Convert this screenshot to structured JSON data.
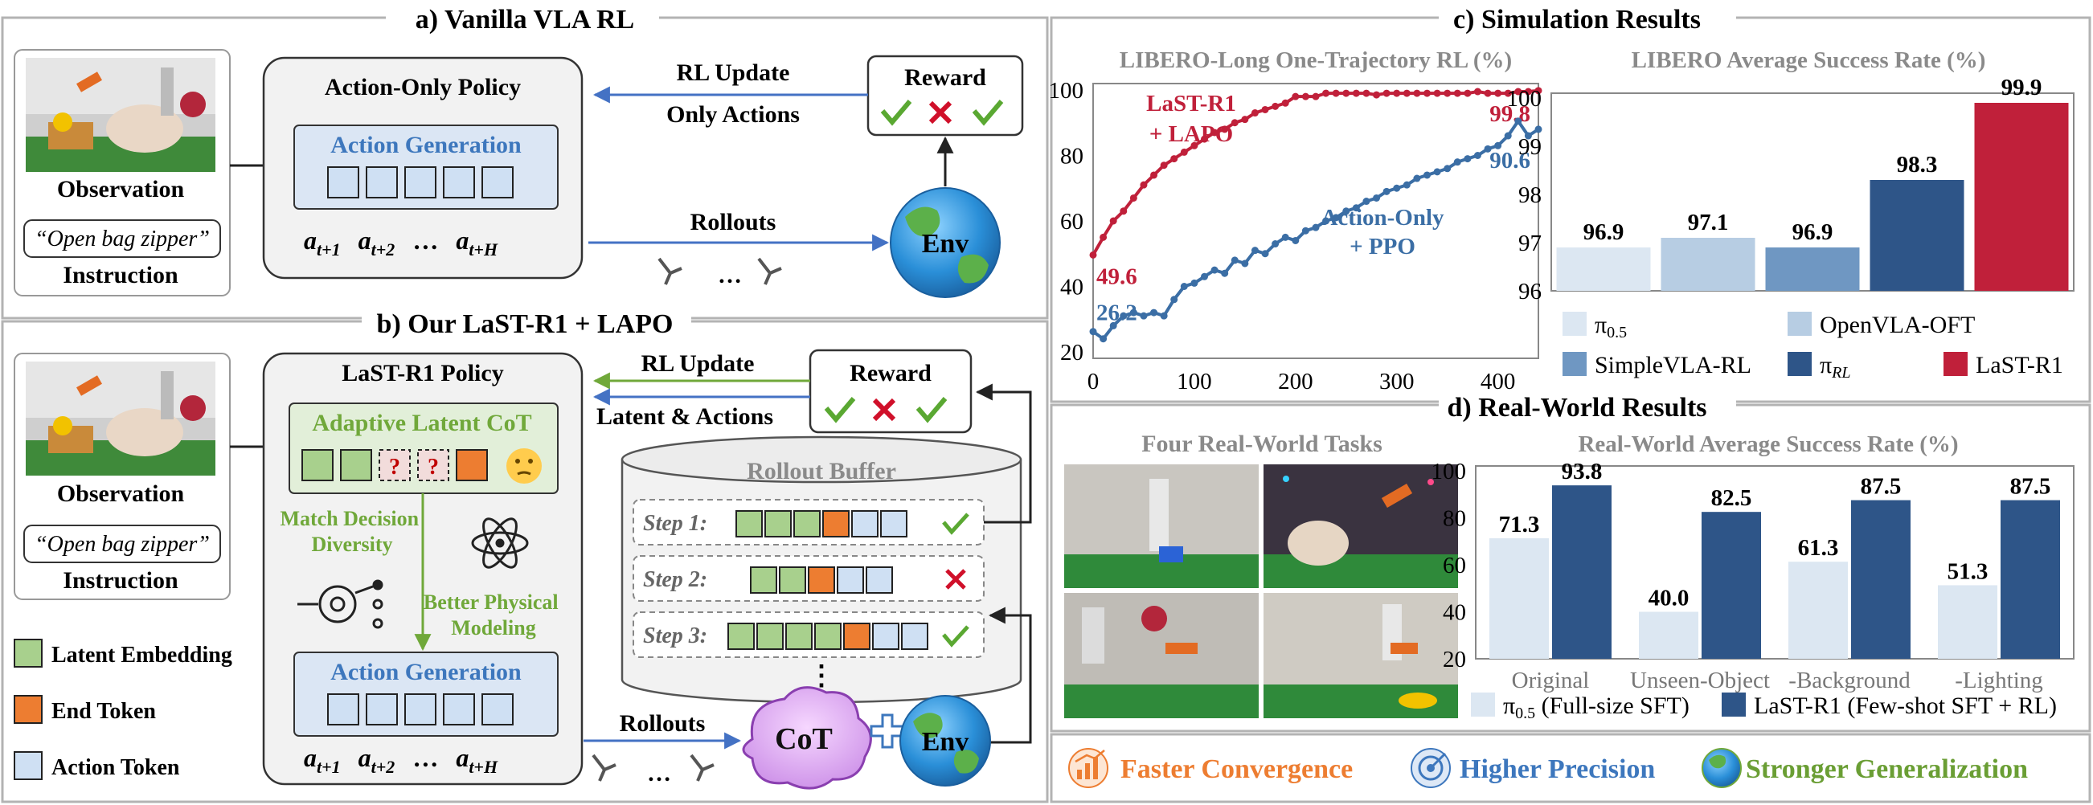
{
  "panel_a": {
    "title": "a) Vanilla VLA RL",
    "observation_label": "Observation",
    "instruction_text": "“Open bag zipper”",
    "instruction_label": "Instruction",
    "policy_title": "Action-Only Policy",
    "action_generation": "Action Generation",
    "action_seq": [
      "a",
      "t+1",
      "a",
      "t+2",
      "…",
      "a",
      "t+H"
    ],
    "rl_update": "RL Update",
    "only_actions": "Only Actions",
    "reward": "Reward",
    "rollouts": "Rollouts",
    "env": "Env",
    "dots": "…"
  },
  "panel_b": {
    "title": "b) Our LaST-R1 + LAPO",
    "observation_label": "Observation",
    "instruction_text": "“Open bag zipper”",
    "instruction_label": "Instruction",
    "policy_title": "LaST-R1 Policy",
    "adaptive_cot": "Adaptive Latent CoT",
    "match_decision": [
      "Match Decision",
      "Diversity"
    ],
    "better_physical": [
      "Better Physical",
      "Modeling"
    ],
    "action_generation": "Action Generation",
    "action_seq": [
      "a",
      "t+1",
      "a",
      "t+2",
      "…",
      "a",
      "t+H"
    ],
    "legend": [
      "Latent Embedding",
      "End Token",
      "Action Token"
    ],
    "rl_update": "RL Update",
    "latent_actions": "Latent & Actions",
    "reward": "Reward",
    "rollout_buffer": "Rollout Buffer",
    "steps": [
      "Step 1:",
      "Step 2:",
      "Step 3:"
    ],
    "rollouts": "Rollouts",
    "cot": "CoT",
    "env": "Env",
    "dots": "…",
    "vdots": "⋮"
  },
  "panel_c": {
    "title": "c) Simulation Results",
    "legend": [
      "π0.5",
      "OpenVLA-OFT",
      "SimpleVLA-RL",
      "πRL",
      "LaST-R1"
    ]
  },
  "panel_d": {
    "title": "d) Real-World Results",
    "tasks_title": "Four Real-World Tasks",
    "legend": [
      "π0.5 (Full-size SFT)",
      "LaST-R1 (Few-shot SFT + RL)"
    ]
  },
  "footer": {
    "items": [
      "Faster Convergence",
      "Higher Precision",
      "Stronger Generalization"
    ]
  },
  "colors": {
    "border": "#b3b3b3",
    "action_blue": "#cfe0f3",
    "latent_green": "#a8d08d",
    "end_orange": "#ed7d31",
    "lastr1_red": "#c0203a",
    "pi_dark": "#2e5588",
    "line_blue": "#3b6ea5",
    "green_text": "#70a83a",
    "blue_text": "#3d77bd",
    "orange_text": "#ed7d31"
  },
  "chart_data": [
    {
      "type": "line",
      "title": "LIBERO-Long One-Trajectory RL (%)",
      "xlim": [
        0,
        440
      ],
      "ylim": [
        20,
        100
      ],
      "xticks": [
        0,
        100,
        200,
        300,
        400
      ],
      "yticks": [
        20,
        40,
        60,
        80,
        100
      ],
      "series": [
        {
          "name": "LaST-R1 + LAPO",
          "color": "#c0203a",
          "x": [
            0,
            10,
            20,
            30,
            40,
            50,
            60,
            70,
            80,
            90,
            100,
            110,
            120,
            130,
            140,
            150,
            160,
            170,
            180,
            190,
            200,
            210,
            220,
            230,
            240,
            250,
            260,
            270,
            280,
            290,
            300,
            310,
            320,
            330,
            340,
            350,
            360,
            370,
            380,
            390,
            400,
            410,
            420,
            430,
            440
          ],
          "y": [
            49.6,
            55,
            60,
            63,
            67,
            71,
            74,
            77,
            79,
            81,
            83,
            85,
            87,
            88,
            90,
            91,
            93,
            94,
            95,
            96,
            98,
            98,
            98,
            99,
            99,
            99,
            99,
            99,
            98.5,
            99,
            99,
            99,
            99,
            99,
            99,
            99,
            99,
            99,
            99.5,
            99,
            99,
            99,
            99.5,
            99.5,
            99.8
          ],
          "start_label": "49.6",
          "end_label": "99.8"
        },
        {
          "name": "Action-Only + PPO",
          "color": "#3b6ea5",
          "x": [
            0,
            10,
            20,
            30,
            40,
            50,
            60,
            70,
            80,
            90,
            100,
            110,
            120,
            130,
            140,
            150,
            160,
            170,
            180,
            190,
            200,
            210,
            220,
            230,
            240,
            250,
            260,
            270,
            280,
            290,
            300,
            310,
            320,
            330,
            340,
            350,
            360,
            370,
            380,
            390,
            400,
            410,
            420,
            430,
            440
          ],
          "y": [
            26.2,
            24,
            28,
            31,
            32,
            31,
            32,
            31,
            36,
            40,
            41,
            43,
            45,
            44,
            48,
            47,
            51,
            50,
            53,
            55,
            54,
            57,
            58,
            60,
            61,
            63,
            64,
            66,
            67,
            69,
            70,
            71,
            73,
            74,
            75,
            76,
            78,
            79,
            80,
            82,
            83,
            86,
            90.5,
            86,
            88
          ],
          "start_label": "26.2",
          "end_label": "90.6"
        }
      ],
      "annotations": [
        {
          "text": "LaST-R1",
          "color": "#c0203a"
        },
        {
          "text": "+ LAPO",
          "color": "#c0203a"
        },
        {
          "text": "Action-Only",
          "color": "#3b6ea5"
        },
        {
          "text": "+ PPO",
          "color": "#3b6ea5"
        }
      ]
    },
    {
      "type": "bar",
      "title": "LIBERO Average Success Rate (%)",
      "ylim": [
        96,
        100
      ],
      "yticks": [
        96,
        97,
        98,
        99,
        100
      ],
      "categories": [
        "π0.5",
        "OpenVLA-OFT",
        "SimpleVLA-RL",
        "πRL",
        "LaST-R1"
      ],
      "values": [
        96.9,
        97.1,
        96.9,
        98.3,
        99.9
      ],
      "colors": [
        "#dce7f2",
        "#b7cde3",
        "#6f97c2",
        "#2e5588",
        "#c0203a"
      ]
    },
    {
      "type": "bar",
      "title": "Real-World Average Success Rate (%)",
      "ylim": [
        20,
        100
      ],
      "yticks": [
        20,
        40,
        60,
        80,
        100
      ],
      "categories": [
        "Original",
        "Unseen-Object",
        "-Background",
        "-Lighting"
      ],
      "series": [
        {
          "name": "π0.5 (Full-size SFT)",
          "values": [
            71.3,
            40.0,
            61.3,
            51.3
          ],
          "color": "#dce7f2"
        },
        {
          "name": "LaST-R1 (Few-shot SFT + RL)",
          "values": [
            93.8,
            82.5,
            87.5,
            87.5
          ],
          "color": "#2e5588"
        }
      ],
      "value_labels": [
        [
          "71.3",
          "40.0",
          "61.3",
          "51.3"
        ],
        [
          "93.8",
          "82.5",
          "87.5",
          "87.5"
        ]
      ]
    }
  ]
}
